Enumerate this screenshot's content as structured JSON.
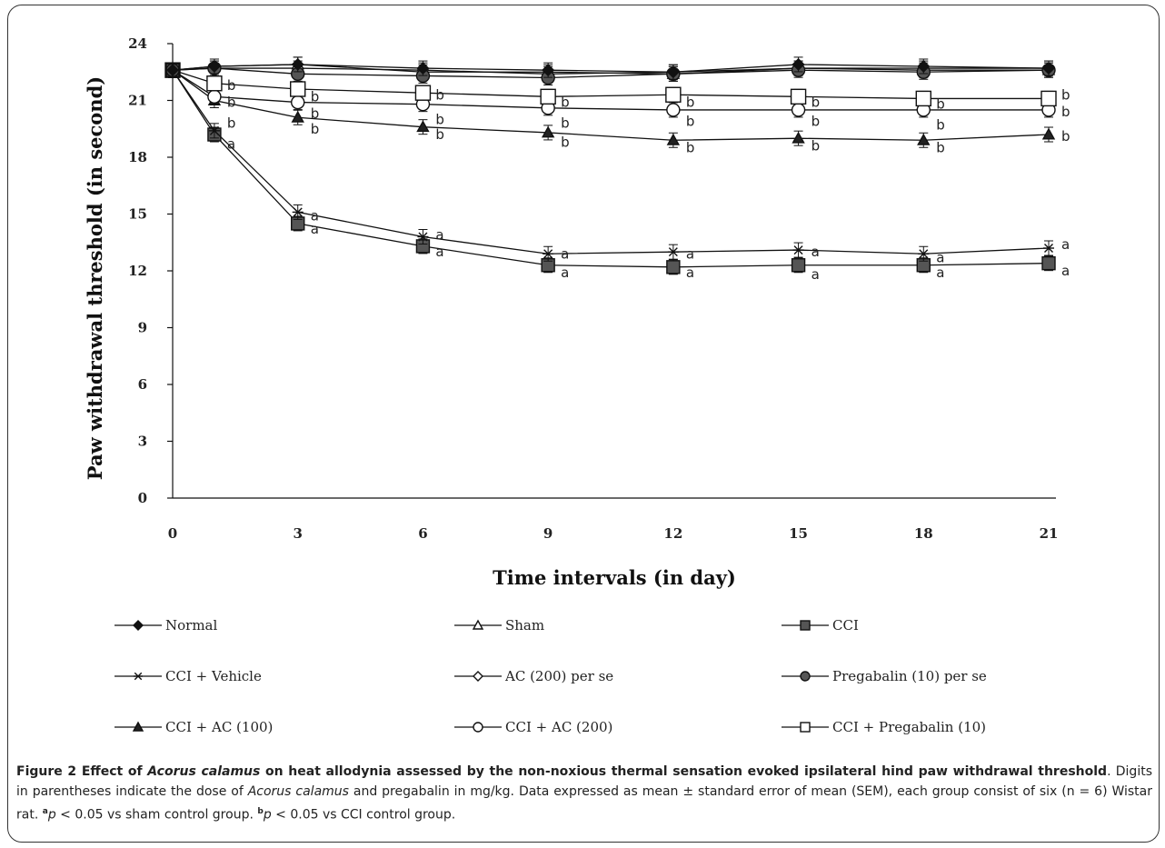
{
  "chart_data": {
    "type": "line",
    "title": "",
    "xlabel": "Time intervals (in day)",
    "ylabel": "Paw withdrawal threshold (in second)",
    "x": [
      0,
      1,
      3,
      6,
      9,
      12,
      15,
      18,
      21
    ],
    "x_ticks": [
      0,
      3,
      6,
      9,
      12,
      15,
      18,
      21
    ],
    "y_ticks": [
      0,
      3,
      6,
      9,
      12,
      15,
      18,
      21,
      24
    ],
    "xlim": [
      0,
      21
    ],
    "ylim": [
      0,
      24
    ],
    "grid": false,
    "legend_position": "bottom",
    "series": [
      {
        "name": "Normal",
        "marker": "filled-diamond",
        "values": [
          22.6,
          22.8,
          22.9,
          22.7,
          22.6,
          22.5,
          22.9,
          22.8,
          22.7
        ]
      },
      {
        "name": "Sham",
        "marker": "open-triangle",
        "values": [
          22.6,
          22.8,
          22.9,
          22.5,
          22.5,
          22.4,
          22.7,
          22.6,
          22.6
        ]
      },
      {
        "name": "CCI",
        "marker": "filled-square",
        "values": [
          22.6,
          19.2,
          14.5,
          13.3,
          12.3,
          12.2,
          12.3,
          12.3,
          12.4
        ]
      },
      {
        "name": "CCI + Vehicle",
        "marker": "asterisk",
        "values": [
          22.6,
          19.4,
          15.1,
          13.8,
          12.9,
          13.0,
          13.1,
          12.9,
          13.2
        ]
      },
      {
        "name": "AC (200) per se",
        "marker": "open-diamond",
        "values": [
          22.6,
          22.7,
          22.7,
          22.6,
          22.4,
          22.5,
          22.7,
          22.7,
          22.7
        ]
      },
      {
        "name": "Pregabalin (10) per se",
        "marker": "filled-circle",
        "values": [
          22.6,
          22.7,
          22.4,
          22.3,
          22.2,
          22.4,
          22.6,
          22.5,
          22.6
        ]
      },
      {
        "name": "CCI + AC (100)",
        "marker": "filled-triangle",
        "values": [
          22.6,
          21.0,
          20.1,
          19.6,
          19.3,
          18.9,
          19.0,
          18.9,
          19.2
        ]
      },
      {
        "name": "CCI + AC (200)",
        "marker": "open-circle",
        "values": [
          22.6,
          21.2,
          20.9,
          20.8,
          20.6,
          20.5,
          20.5,
          20.5,
          20.5
        ]
      },
      {
        "name": "CCI + Pregabalin (10)",
        "marker": "open-square",
        "values": [
          22.6,
          21.9,
          21.6,
          21.4,
          21.2,
          21.3,
          21.2,
          21.1,
          21.1
        ]
      }
    ],
    "annotations": [
      {
        "text": "a",
        "x": 1,
        "y": 18.7
      },
      {
        "text": "a",
        "x": 3,
        "y": 14.9
      },
      {
        "text": "a",
        "x": 3,
        "y": 14.2
      },
      {
        "text": "a",
        "x": 6,
        "y": 13.9
      },
      {
        "text": "a",
        "x": 6,
        "y": 13.0
      },
      {
        "text": "a",
        "x": 9,
        "y": 12.9
      },
      {
        "text": "a",
        "x": 9,
        "y": 11.9
      },
      {
        "text": "a",
        "x": 12,
        "y": 12.9
      },
      {
        "text": "a",
        "x": 12,
        "y": 11.9
      },
      {
        "text": "a",
        "x": 15,
        "y": 13.0
      },
      {
        "text": "a",
        "x": 15,
        "y": 11.8
      },
      {
        "text": "a",
        "x": 18,
        "y": 12.7
      },
      {
        "text": "a",
        "x": 18,
        "y": 11.9
      },
      {
        "text": "a",
        "x": 21,
        "y": 13.4
      },
      {
        "text": "a",
        "x": 21,
        "y": 12.0
      },
      {
        "text": "b",
        "x": 1,
        "y": 21.8
      },
      {
        "text": "b",
        "x": 1,
        "y": 20.9
      },
      {
        "text": "b",
        "x": 1,
        "y": 19.8
      },
      {
        "text": "b",
        "x": 3,
        "y": 21.2
      },
      {
        "text": "b",
        "x": 3,
        "y": 20.3
      },
      {
        "text": "b",
        "x": 3,
        "y": 19.5
      },
      {
        "text": "b",
        "x": 6,
        "y": 21.3
      },
      {
        "text": "b",
        "x": 6,
        "y": 20.0
      },
      {
        "text": "b",
        "x": 6,
        "y": 19.2
      },
      {
        "text": "b",
        "x": 9,
        "y": 20.9
      },
      {
        "text": "b",
        "x": 9,
        "y": 19.8
      },
      {
        "text": "b",
        "x": 9,
        "y": 18.8
      },
      {
        "text": "b",
        "x": 12,
        "y": 20.9
      },
      {
        "text": "b",
        "x": 12,
        "y": 19.9
      },
      {
        "text": "b",
        "x": 12,
        "y": 18.5
      },
      {
        "text": "b",
        "x": 15,
        "y": 20.9
      },
      {
        "text": "b",
        "x": 15,
        "y": 19.9
      },
      {
        "text": "b",
        "x": 15,
        "y": 18.6
      },
      {
        "text": "b",
        "x": 18,
        "y": 20.8
      },
      {
        "text": "b",
        "x": 18,
        "y": 19.7
      },
      {
        "text": "b",
        "x": 18,
        "y": 18.5
      },
      {
        "text": "b",
        "x": 21,
        "y": 21.3
      },
      {
        "text": "b",
        "x": 21,
        "y": 20.4
      },
      {
        "text": "b",
        "x": 21,
        "y": 19.1
      }
    ]
  },
  "caption": {
    "label": "Figure 2",
    "title_pre": "Effect of ",
    "title_species": "Acorus calamus",
    "title_post": " on heat allodynia assessed by the non-noxious thermal sensation evoked ipsilateral hind paw withdrawal threshold",
    "text_a1": ". Digits in parentheses indicate the dose of ",
    "text_species": "Acorus calamus",
    "text_a2": " and pregabalin in mg/kg. Data expressed as mean ± standard error of mean (SEM), each group consist of six (n = 6) Wistar rat. ",
    "sig_a_mark": "a",
    "sig_a_p": "p",
    "sig_a_rest": " < 0.05 vs sham control group. ",
    "sig_b_mark": "b",
    "sig_b_p": "p",
    "sig_b_rest": " < 0.05 vs CCI control group."
  }
}
